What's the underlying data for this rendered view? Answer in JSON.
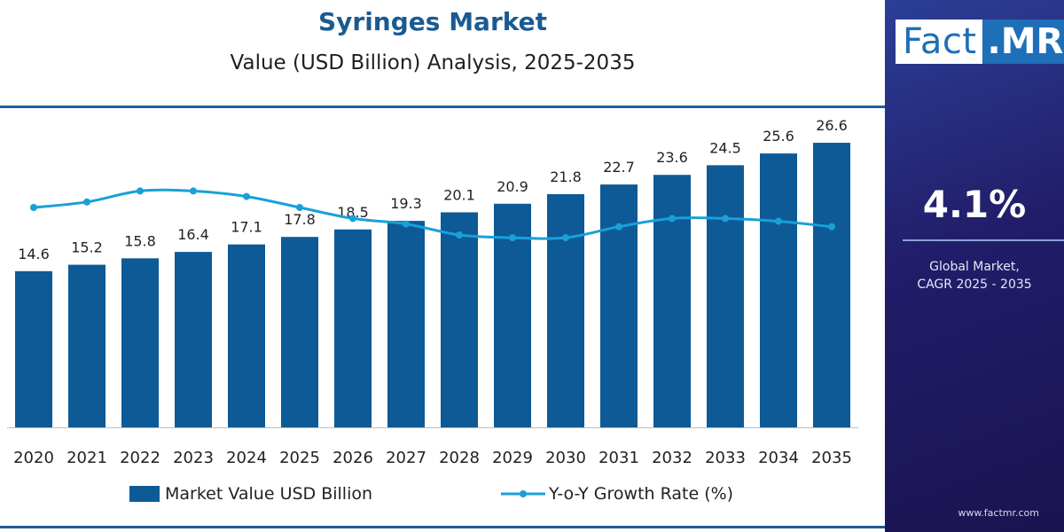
{
  "chart_data": {
    "type": "bar",
    "title": "Syringes Market",
    "subtitle": "Value (USD Billion) Analysis, 2025-2035",
    "categories": [
      "2020",
      "2021",
      "2022",
      "2023",
      "2024",
      "2025",
      "2026",
      "2027",
      "2028",
      "2029",
      "2030",
      "2031",
      "2032",
      "2033",
      "2034",
      "2035"
    ],
    "series": [
      {
        "name": "Market Value USD Billion",
        "kind": "bar",
        "values": [
          14.6,
          15.2,
          15.8,
          16.4,
          17.1,
          17.8,
          18.5,
          19.3,
          20.1,
          20.9,
          21.8,
          22.7,
          23.6,
          24.5,
          25.6,
          26.6
        ]
      },
      {
        "name": "Y-o-Y Growth Rate (%)",
        "kind": "line",
        "values": [
          4.0,
          4.1,
          4.3,
          4.3,
          4.2,
          4.0,
          3.8,
          3.7,
          3.5,
          3.45,
          3.45,
          3.65,
          3.8,
          3.8,
          3.75,
          3.65
        ]
      }
    ],
    "value_labels": [
      "14.6",
      "15.2",
      "15.8",
      "16.4",
      "17.1",
      "17.8",
      "18.5",
      "19.3",
      "20.1",
      "20.9",
      "21.8",
      "22.7",
      "23.6",
      "24.5",
      "25.6",
      "26.6"
    ],
    "ylim_bar": [
      0,
      30
    ],
    "ylim_line": [
      0,
      6
    ],
    "xlabel": "",
    "ylabel": "",
    "legend_position": "bottom",
    "grid": false
  },
  "colors": {
    "bar": "#0d5a96",
    "line": "#1aa0d8",
    "title": "#1a5a92",
    "panel": "#221d6a"
  },
  "legend": {
    "bar_label": "Market Value USD Billion",
    "line_label": "Y-o-Y Growth Rate (%)"
  },
  "side_panel": {
    "logo_left": "Fact",
    "logo_right": ".MR",
    "cagr_value": "4.1%",
    "cagr_label_line1": "Global Market,",
    "cagr_label_line2": "CAGR 2025 - 2035",
    "website": "www.factmr.com"
  }
}
